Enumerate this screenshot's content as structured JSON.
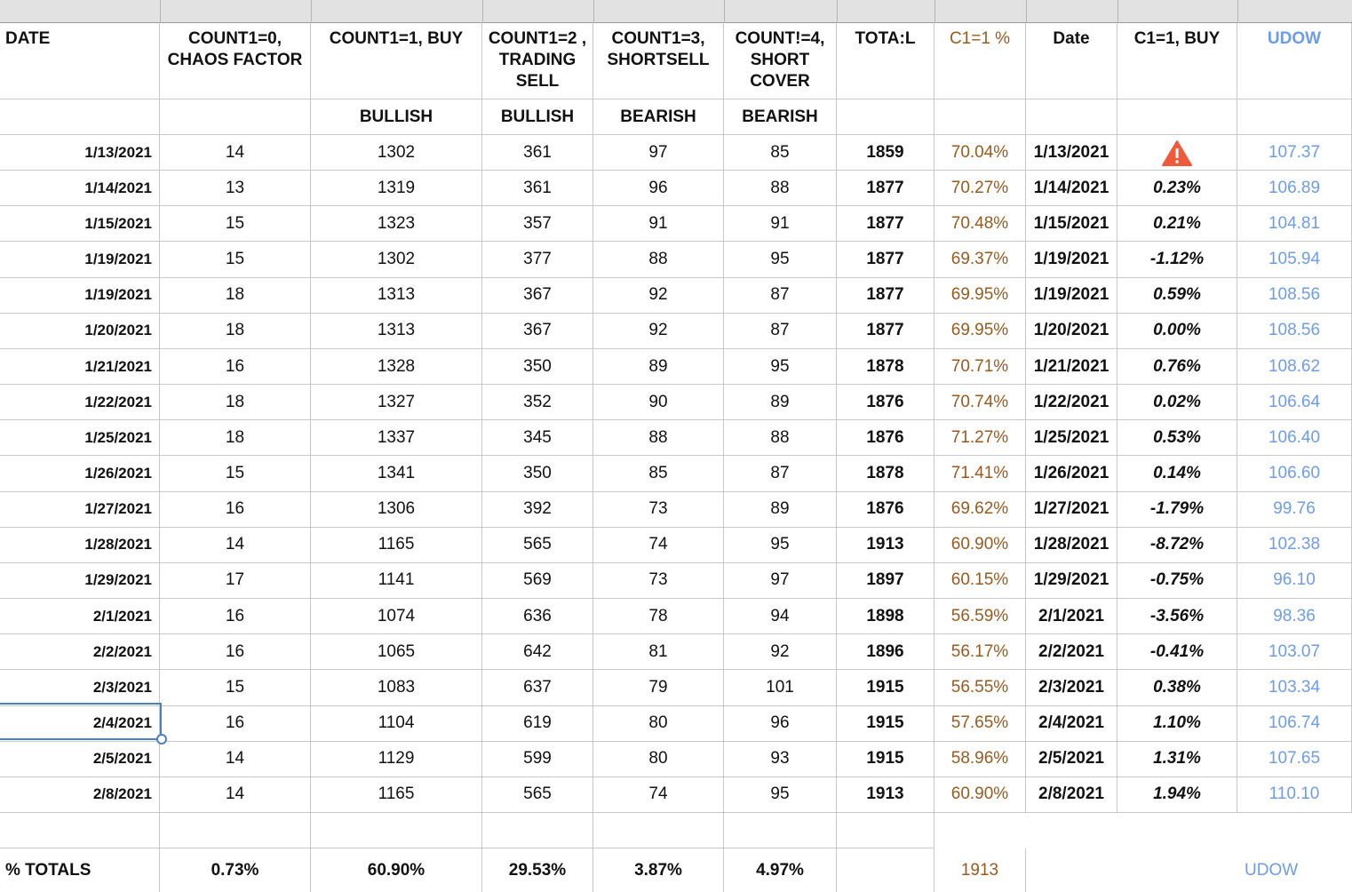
{
  "table": {
    "headers": [
      "DATE",
      "COUNT1=0, CHAOS FACTOR",
      "COUNT1=1, BUY",
      "COUNT1=2 , TRADING SELL",
      "COUNT1=3, SHORTSELL",
      "COUNT!=4, SHORT COVER",
      "TOTA:L",
      "C1=1 %",
      "Date",
      "C1=1, BUY",
      "UDOW"
    ],
    "subheaders": [
      null,
      null,
      "BULLISH",
      "BULLISH",
      "BEARISH",
      "BEARISH",
      null,
      null,
      null,
      null,
      null
    ],
    "rows": [
      [
        "1/13/2021",
        "14",
        "1302",
        "361",
        "97",
        "85",
        "1859",
        "70.04%",
        "1/13/2021",
        null,
        "107.37"
      ],
      [
        "1/14/2021",
        "13",
        "1319",
        "361",
        "96",
        "88",
        "1877",
        "70.27%",
        "1/14/2021",
        "0.23%",
        "106.89"
      ],
      [
        "1/15/2021",
        "15",
        "1323",
        "357",
        "91",
        "91",
        "1877",
        "70.48%",
        "1/15/2021",
        "0.21%",
        "104.81"
      ],
      [
        "1/19/2021",
        "15",
        "1302",
        "377",
        "88",
        "95",
        "1877",
        "69.37%",
        "1/19/2021",
        "-1.12%",
        "105.94"
      ],
      [
        "1/19/2021",
        "18",
        "1313",
        "367",
        "92",
        "87",
        "1877",
        "69.95%",
        "1/19/2021",
        "0.59%",
        "108.56"
      ],
      [
        "1/20/2021",
        "18",
        "1313",
        "367",
        "92",
        "87",
        "1877",
        "69.95%",
        "1/20/2021",
        "0.00%",
        "108.56"
      ],
      [
        "1/21/2021",
        "16",
        "1328",
        "350",
        "89",
        "95",
        "1878",
        "70.71%",
        "1/21/2021",
        "0.76%",
        "108.62"
      ],
      [
        "1/22/2021",
        "18",
        "1327",
        "352",
        "90",
        "89",
        "1876",
        "70.74%",
        "1/22/2021",
        "0.02%",
        "106.64"
      ],
      [
        "1/25/2021",
        "18",
        "1337",
        "345",
        "88",
        "88",
        "1876",
        "71.27%",
        "1/25/2021",
        "0.53%",
        "106.40"
      ],
      [
        "1/26/2021",
        "15",
        "1341",
        "350",
        "85",
        "87",
        "1878",
        "71.41%",
        "1/26/2021",
        "0.14%",
        "106.60"
      ],
      [
        "1/27/2021",
        "16",
        "1306",
        "392",
        "73",
        "89",
        "1876",
        "69.62%",
        "1/27/2021",
        "-1.79%",
        "99.76"
      ],
      [
        "1/28/2021",
        "14",
        "1165",
        "565",
        "74",
        "95",
        "1913",
        "60.90%",
        "1/28/2021",
        "-8.72%",
        "102.38"
      ],
      [
        "1/29/2021",
        "17",
        "1141",
        "569",
        "73",
        "97",
        "1897",
        "60.15%",
        "1/29/2021",
        "-0.75%",
        "96.10"
      ],
      [
        "2/1/2021",
        "16",
        "1074",
        "636",
        "78",
        "94",
        "1898",
        "56.59%",
        "2/1/2021",
        "-3.56%",
        "98.36"
      ],
      [
        "2/2/2021",
        "16",
        "1065",
        "642",
        "81",
        "92",
        "1896",
        "56.17%",
        "2/2/2021",
        "-0.41%",
        "103.07"
      ],
      [
        "2/3/2021",
        "15",
        "1083",
        "637",
        "79",
        "101",
        "1915",
        "56.55%",
        "2/3/2021",
        "0.38%",
        "103.34"
      ],
      [
        "2/4/2021",
        "16",
        "1104",
        "619",
        "80",
        "96",
        "1915",
        "57.65%",
        "2/4/2021",
        "1.10%",
        "106.74"
      ],
      [
        "2/5/2021",
        "14",
        "1129",
        "599",
        "80",
        "93",
        "1915",
        "58.96%",
        "2/5/2021",
        "1.31%",
        "107.65"
      ],
      [
        "2/8/2021",
        "14",
        "1165",
        "565",
        "74",
        "95",
        "1913",
        "60.90%",
        "2/8/2021",
        "1.94%",
        "110.10"
      ]
    ],
    "totals": [
      "% TOTALS",
      "0.73%",
      "60.90%",
      "29.53%",
      "3.87%",
      "4.97%",
      null,
      "1913",
      null,
      null,
      "UDOW"
    ]
  }
}
